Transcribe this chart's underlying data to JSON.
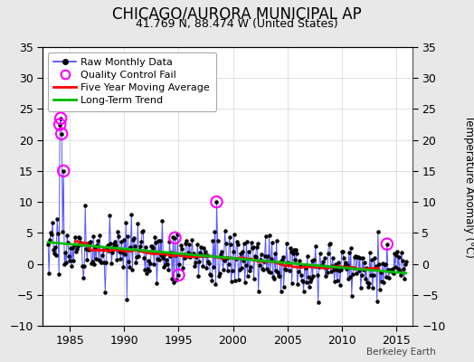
{
  "title": "CHICAGO/AURORA MUNICIPAL AP",
  "subtitle": "41.769 N, 88.474 W (United States)",
  "ylabel_right": "Temperature Anomaly (°C)",
  "watermark": "Berkeley Earth",
  "xlim": [
    1982.5,
    2016.5
  ],
  "ylim": [
    -10,
    35
  ],
  "yticks": [
    -10,
    -5,
    0,
    5,
    10,
    15,
    20,
    25,
    30,
    35
  ],
  "xticks": [
    1985,
    1990,
    1995,
    2000,
    2005,
    2010,
    2015
  ],
  "background_color": "#e8e8e8",
  "plot_bg_color": "#ffffff",
  "raw_color": "#4444ff",
  "raw_marker_color": "#000000",
  "qc_color": "#ff00ff",
  "moving_avg_color": "#ff0000",
  "trend_color": "#00bb00",
  "title_fontsize": 12,
  "subtitle_fontsize": 9,
  "legend_fontsize": 8
}
